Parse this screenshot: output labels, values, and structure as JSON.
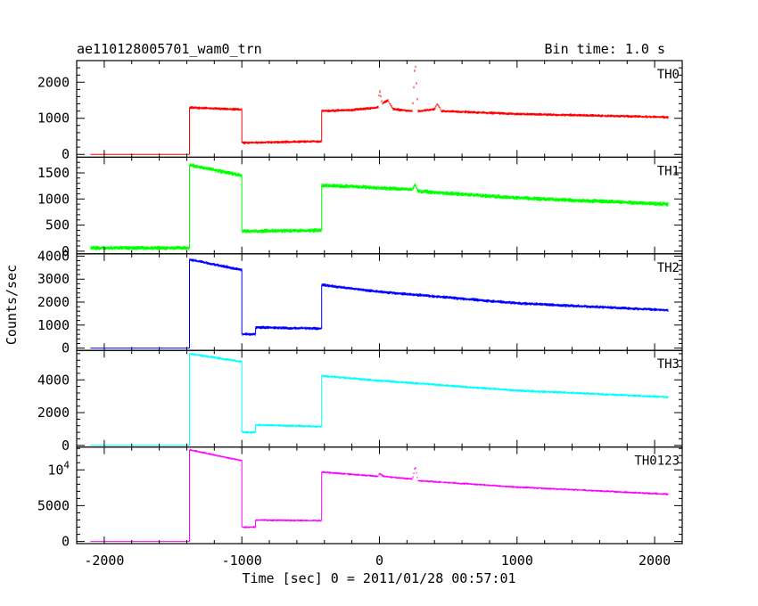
{
  "chart_data": {
    "type": "line",
    "title_left": "ae110128005701_wam0_trn",
    "title_right": "Bin time: 1.0 s",
    "xlabel": "Time [sec] 0 = 2011/01/28 00:57:01",
    "ylabel": "Counts/sec",
    "xlim": [
      -2200,
      2200
    ],
    "x_ticks": [
      -2000,
      -1000,
      0,
      1000,
      2000
    ],
    "grid": false,
    "panels": [
      {
        "name": "TH0",
        "color": "#ff0000",
        "ylim": [
          -80,
          2600
        ],
        "y_ticks": [
          0,
          1000,
          2000
        ],
        "y_tick_labels": [
          "0",
          "1000",
          "2000"
        ],
        "noise": 40,
        "points": [
          [
            -2200,
            null
          ],
          [
            -2100,
            0
          ],
          [
            -1380,
            0
          ],
          [
            -1379,
            1300
          ],
          [
            -1000,
            1240
          ],
          [
            -999,
            320
          ],
          [
            -420,
            360
          ],
          [
            -419,
            1200
          ],
          [
            -200,
            1230
          ],
          [
            -10,
            1300
          ],
          [
            0,
            1800
          ],
          [
            20,
            1400
          ],
          [
            60,
            1500
          ],
          [
            100,
            1250
          ],
          [
            240,
            1200
          ],
          [
            260,
            2600
          ],
          [
            280,
            1200
          ],
          [
            400,
            1250
          ],
          [
            420,
            1400
          ],
          [
            450,
            1200
          ],
          [
            1000,
            1120
          ],
          [
            2100,
            1030
          ]
        ]
      },
      {
        "name": "TH1",
        "color": "#00ff00",
        "ylim": [
          -50,
          1800
        ],
        "y_ticks": [
          0,
          500,
          1000,
          1500
        ],
        "y_tick_labels": [
          "0",
          "500",
          "1000",
          "1500"
        ],
        "noise": 40,
        "points": [
          [
            -2100,
            60
          ],
          [
            -1380,
            60
          ],
          [
            -1379,
            1650
          ],
          [
            -1000,
            1450
          ],
          [
            -999,
            380
          ],
          [
            -420,
            400
          ],
          [
            -419,
            1260
          ],
          [
            -200,
            1240
          ],
          [
            240,
            1180
          ],
          [
            260,
            1280
          ],
          [
            280,
            1150
          ],
          [
            1000,
            1020
          ],
          [
            2100,
            900
          ]
        ]
      },
      {
        "name": "TH2",
        "color": "#0000ff",
        "ylim": [
          -100,
          4100
        ],
        "y_ticks": [
          0,
          1000,
          2000,
          3000,
          4000
        ],
        "y_tick_labels": [
          "0",
          "1000",
          "2000",
          "3000",
          "4000"
        ],
        "noise": 70,
        "points": [
          [
            -2100,
            0
          ],
          [
            -1380,
            0
          ],
          [
            -1379,
            3850
          ],
          [
            -1000,
            3400
          ],
          [
            -999,
            600
          ],
          [
            -900,
            600
          ],
          [
            -899,
            900
          ],
          [
            -420,
            850
          ],
          [
            -419,
            2750
          ],
          [
            0,
            2450
          ],
          [
            1000,
            1950
          ],
          [
            2100,
            1650
          ]
        ]
      },
      {
        "name": "TH3",
        "color": "#00ffff",
        "ylim": [
          -100,
          5800
        ],
        "y_ticks": [
          0,
          2000,
          4000
        ],
        "y_tick_labels": [
          "0",
          "2000",
          "4000"
        ],
        "noise": 80,
        "points": [
          [
            -2100,
            0
          ],
          [
            -1380,
            0
          ],
          [
            -1379,
            5600
          ],
          [
            -1000,
            5100
          ],
          [
            -999,
            800
          ],
          [
            -900,
            800
          ],
          [
            -899,
            1250
          ],
          [
            -420,
            1150
          ],
          [
            -419,
            4250
          ],
          [
            0,
            3950
          ],
          [
            1000,
            3350
          ],
          [
            2100,
            2950
          ]
        ]
      },
      {
        "name": "TH0123",
        "color": "#ff00ff",
        "ylim": [
          -300,
          13200
        ],
        "y_ticks": [
          0,
          5000,
          10000
        ],
        "y_tick_labels": [
          "0",
          "5000",
          "10^4"
        ],
        "noise": 150,
        "points": [
          [
            -2100,
            0
          ],
          [
            -1380,
            0
          ],
          [
            -1379,
            12800
          ],
          [
            -1000,
            11300
          ],
          [
            -999,
            2000
          ],
          [
            -900,
            2000
          ],
          [
            -899,
            3000
          ],
          [
            -420,
            2900
          ],
          [
            -419,
            9700
          ],
          [
            -10,
            9100
          ],
          [
            0,
            9500
          ],
          [
            30,
            9100
          ],
          [
            240,
            8700
          ],
          [
            260,
            10500
          ],
          [
            280,
            8500
          ],
          [
            1000,
            7600
          ],
          [
            2100,
            6600
          ]
        ]
      }
    ]
  }
}
